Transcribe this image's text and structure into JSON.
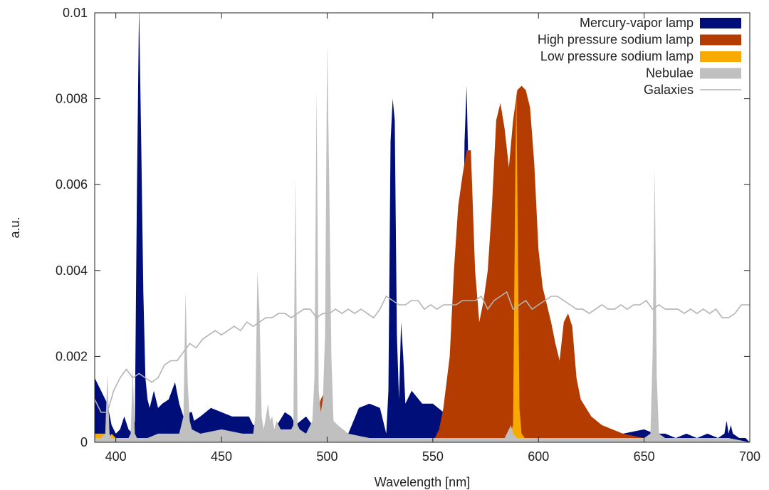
{
  "chart_data": {
    "type": "area",
    "xlabel": "Wavelength [nm]",
    "ylabel": "a.u.",
    "xlim": [
      390,
      700
    ],
    "ylim": [
      0,
      0.01
    ],
    "xticks": [
      400,
      450,
      500,
      550,
      600,
      650,
      700
    ],
    "yticks": [
      0,
      0.002,
      0.004,
      0.006,
      0.008,
      0.01
    ],
    "ytick_labels": [
      "0",
      "0.002",
      "0.004",
      "0.006",
      "0.008",
      "0.01"
    ],
    "grid": false,
    "legend_position": "top-right",
    "series": [
      {
        "name": "Mercury-vapor lamp",
        "style": "area",
        "color": "#000e7a",
        "x": [
          390,
          393,
          396,
          398,
          400,
          402,
          404,
          406,
          408,
          409,
          410,
          411,
          412,
          413,
          414,
          415,
          416,
          418,
          420,
          422,
          425,
          428,
          430,
          432,
          433,
          434,
          435,
          436,
          437,
          440,
          445,
          450,
          455,
          460,
          463,
          465,
          468,
          470,
          475,
          480,
          483,
          485,
          490,
          493,
          495,
          498,
          500,
          505,
          510,
          515,
          520,
          525,
          528,
          529,
          530,
          531,
          532,
          533,
          534,
          535,
          536,
          537,
          540,
          545,
          550,
          555,
          560,
          562,
          564,
          565,
          566,
          567,
          568,
          570,
          575,
          580,
          585,
          590,
          595,
          600,
          610,
          620,
          630,
          640,
          650,
          655,
          660,
          665,
          670,
          675,
          680,
          685,
          688,
          689,
          690,
          691,
          692,
          695,
          698,
          700
        ],
        "y": [
          0.0015,
          0.0012,
          0.0009,
          0.0004,
          0.0002,
          0.0003,
          0.0006,
          0.0003,
          0.0002,
          0.0005,
          0.006,
          0.0102,
          0.007,
          0.0035,
          0.0015,
          0.001,
          0.0008,
          0.0012,
          0.0008,
          0.0009,
          0.001,
          0.0014,
          0.0009,
          0.0006,
          0.0003,
          0.0004,
          0.0007,
          0.0007,
          0.0005,
          0.0006,
          0.0008,
          0.0007,
          0.0006,
          0.0006,
          0.0006,
          0.0004,
          0.0004,
          0.0003,
          0.0003,
          0.0007,
          0.0006,
          0.0004,
          0.0006,
          0.0004,
          0.0005,
          0.0005,
          0.0003,
          0.0003,
          0.0002,
          0.0008,
          0.0009,
          0.0008,
          0.0002,
          0.0012,
          0.007,
          0.008,
          0.0075,
          0.0025,
          0.001,
          0.0028,
          0.002,
          0.0009,
          0.0012,
          0.0009,
          0.0009,
          0.0007,
          0.0006,
          0.0009,
          0.003,
          0.007,
          0.0083,
          0.006,
          0.003,
          0.001,
          0.0005,
          0.0004,
          0.0003,
          0.0002,
          0.0002,
          0.0002,
          0.0002,
          0.0002,
          0.0002,
          0.0002,
          0.0003,
          0.0002,
          0.0002,
          0.0001,
          0.0002,
          0.0001,
          0.0002,
          0.0001,
          0.0002,
          0.0005,
          0.0002,
          0.0004,
          0.0002,
          0.0001,
          0.0001,
          0
        ]
      },
      {
        "name": "High pressure sodium lamp",
        "style": "area",
        "color": "#b43c00",
        "x": [
          490,
          493,
          495,
          497,
          498,
          499,
          500,
          502,
          503,
          505,
          510,
          520,
          530,
          540,
          550,
          553,
          555,
          558,
          560,
          562,
          564,
          566,
          568,
          570,
          572,
          574,
          576,
          578,
          580,
          582,
          584,
          586,
          588,
          590,
          592,
          594,
          596,
          598,
          600,
          602,
          604,
          606,
          608,
          610,
          612,
          614,
          616,
          618,
          620,
          625,
          630,
          640,
          650,
          660,
          670,
          680,
          690,
          700
        ],
        "y": [
          0,
          0.0003,
          0.0007,
          0.001,
          0.0011,
          0.0011,
          0.0009,
          0.0005,
          0.0002,
          0.0001,
          0,
          0,
          0,
          0,
          0,
          0.0003,
          0.0008,
          0.002,
          0.004,
          0.0055,
          0.0062,
          0.0068,
          0.0068,
          0.004,
          0.0028,
          0.0033,
          0.004,
          0.0055,
          0.0075,
          0.0079,
          0.0073,
          0.0064,
          0.0075,
          0.0082,
          0.0083,
          0.0082,
          0.0078,
          0.0065,
          0.0045,
          0.0036,
          0.0032,
          0.0028,
          0.0023,
          0.0019,
          0.0028,
          0.003,
          0.0027,
          0.0015,
          0.001,
          0.0006,
          0.0004,
          0.0002,
          0.0001,
          0.0001,
          0,
          0,
          0,
          0
        ]
      },
      {
        "name": "Low pressure sodium lamp",
        "style": "area",
        "color": "#f9aa00",
        "x": [
          390,
          395,
          397,
          398,
          400,
          405,
          580,
          586,
          588,
          589,
          589.5,
          590,
          591,
          592,
          595,
          600,
          700
        ],
        "y": [
          0.0002,
          0.0002,
          0.0001,
          0.0002,
          0.0001,
          0,
          0,
          0.0001,
          0.0004,
          0.006,
          0.0083,
          0.006,
          0.0008,
          0.0002,
          0,
          0,
          0
        ]
      },
      {
        "name": "Nebulae",
        "style": "area",
        "color": "#c0c0c0",
        "x": [
          390,
          393,
          395,
          396,
          397,
          398,
          400,
          404,
          406,
          407,
          408,
          409,
          410,
          411,
          412,
          413,
          415,
          420,
          425,
          430,
          432,
          433,
          434,
          435,
          436,
          440,
          450,
          460,
          465,
          466,
          467,
          468,
          469,
          470,
          471,
          472,
          473,
          474,
          475,
          476,
          478,
          480,
          483,
          484,
          485,
          486,
          487,
          490,
          493,
          494,
          495,
          496,
          497,
          498,
          499,
          500,
          501,
          502,
          503,
          505,
          510,
          520,
          530,
          540,
          550,
          560,
          570,
          580,
          584,
          586,
          587,
          588,
          590,
          600,
          610,
          620,
          630,
          640,
          650,
          653,
          654,
          655,
          656,
          657,
          660,
          670,
          680,
          690,
          700
        ],
        "y": [
          0.0001,
          0.0001,
          0.0002,
          0.0016,
          0.0002,
          0.0001,
          0.0001,
          0.0001,
          0.0001,
          0.0002,
          0.0017,
          0.0002,
          0.0001,
          0.0001,
          0.0001,
          0.0001,
          0.0001,
          0.0002,
          0.0002,
          0.0002,
          0.0006,
          0.0035,
          0.0014,
          0.0005,
          0.0003,
          0.0002,
          0.0003,
          0.0002,
          0.0002,
          0.0006,
          0.004,
          0.003,
          0.0006,
          0.0003,
          0.0006,
          0.0009,
          0.0005,
          0.0006,
          0.0003,
          0.0005,
          0.0003,
          0.0003,
          0.0003,
          0.0004,
          0.0062,
          0.0004,
          0.0003,
          0.0002,
          0.0005,
          0.0015,
          0.0082,
          0.0012,
          0.0007,
          0.001,
          0.0025,
          0.0093,
          0.006,
          0.002,
          0.0005,
          0.0004,
          0.0002,
          0.0001,
          0.0001,
          0.0001,
          0.0001,
          0.0001,
          0.0001,
          0.0001,
          0.0001,
          0.0003,
          0.0004,
          0.0002,
          0.0001,
          0.0001,
          0.0001,
          0.0001,
          0.0001,
          0.0001,
          0.0001,
          0.0002,
          0.002,
          0.0064,
          0.0015,
          0.0002,
          0.0001,
          0.0001,
          0.0001,
          0.0001,
          0
        ]
      },
      {
        "name": "Galaxies",
        "style": "line",
        "color": "#b4b4b4",
        "x": [
          390,
          393,
          396,
          399,
          402,
          405,
          408,
          411,
          414,
          417,
          420,
          423,
          426,
          429,
          432,
          435,
          438,
          441,
          444,
          447,
          450,
          453,
          456,
          459,
          462,
          465,
          468,
          471,
          474,
          477,
          480,
          483,
          486,
          489,
          492,
          495,
          498,
          501,
          504,
          507,
          510,
          513,
          516,
          519,
          522,
          525,
          528,
          531,
          534,
          537,
          540,
          543,
          546,
          549,
          552,
          555,
          558,
          561,
          564,
          567,
          570,
          573,
          576,
          579,
          582,
          585,
          588,
          591,
          594,
          597,
          600,
          603,
          606,
          609,
          612,
          615,
          618,
          621,
          624,
          627,
          630,
          633,
          636,
          639,
          642,
          645,
          648,
          651,
          654,
          657,
          660,
          663,
          666,
          669,
          672,
          675,
          678,
          681,
          684,
          687,
          690,
          693,
          696,
          699,
          700
        ],
        "y": [
          0.001,
          0.0007,
          0.0007,
          0.0012,
          0.0015,
          0.0017,
          0.0015,
          0.0016,
          0.0015,
          0.0014,
          0.0015,
          0.0018,
          0.0019,
          0.0019,
          0.0021,
          0.0023,
          0.0022,
          0.0024,
          0.0025,
          0.0026,
          0.0025,
          0.0026,
          0.0027,
          0.0026,
          0.0028,
          0.0027,
          0.0028,
          0.0029,
          0.0029,
          0.003,
          0.003,
          0.0029,
          0.003,
          0.0031,
          0.0031,
          0.0029,
          0.003,
          0.003,
          0.0031,
          0.003,
          0.0031,
          0.003,
          0.0031,
          0.003,
          0.0029,
          0.0031,
          0.0034,
          0.0033,
          0.0032,
          0.0032,
          0.0033,
          0.0033,
          0.0031,
          0.0032,
          0.0031,
          0.0032,
          0.0032,
          0.0032,
          0.0033,
          0.0033,
          0.0033,
          0.0034,
          0.0031,
          0.0033,
          0.0034,
          0.0035,
          0.0031,
          0.0032,
          0.0033,
          0.0031,
          0.0032,
          0.0033,
          0.0034,
          0.0034,
          0.0033,
          0.0032,
          0.0031,
          0.0031,
          0.003,
          0.0031,
          0.0032,
          0.0031,
          0.0031,
          0.0032,
          0.0031,
          0.0032,
          0.0032,
          0.0033,
          0.0031,
          0.0032,
          0.0031,
          0.0031,
          0.0031,
          0.003,
          0.0031,
          0.003,
          0.0031,
          0.003,
          0.0031,
          0.0029,
          0.0029,
          0.003,
          0.0032,
          0.0032,
          0.0032
        ]
      }
    ]
  }
}
